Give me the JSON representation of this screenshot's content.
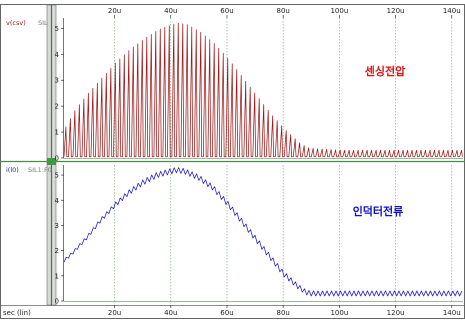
{
  "chart_data": {
    "type": "line",
    "x_ticks": [
      20,
      40,
      60,
      80,
      100,
      120,
      140
    ],
    "x_tick_labels": [
      "20u",
      "40u",
      "60u",
      "80u",
      "100u",
      "120u",
      "140u"
    ],
    "xlim": [
      2,
      144
    ],
    "xlabel": "sec (lin)",
    "panels": [
      {
        "ylabel": "v(csv)",
        "ylabel_extra": "SIL",
        "ylim": [
          0,
          5.4
        ],
        "y_ticks": [
          0,
          1,
          2,
          3,
          4,
          5
        ],
        "annotation": "센싱전압",
        "color": "#a01a1a",
        "series": [
          {
            "style": "pulse",
            "period": 1.6,
            "x": [
              2,
              5,
              10,
              15,
              20,
              25,
              30,
              35,
              40,
              42,
              45,
              50,
              55,
              60,
              65,
              70,
              75,
              80,
              85,
              88,
              92,
              100,
              120,
              144
            ],
            "values": [
              1.2,
              1.8,
              2.5,
              3.1,
              3.7,
              4.2,
              4.6,
              4.95,
              5.15,
              5.2,
              5.15,
              4.85,
              4.4,
              3.8,
              3.1,
              2.4,
              1.7,
              1.1,
              0.6,
              0.4,
              0.35,
              0.3,
              0.3,
              0.3
            ],
            "baseline": 0.05
          }
        ]
      },
      {
        "ylabel": "i(l0)",
        "ylabel_extra": "SIL1:F0",
        "ylim": [
          0,
          5.4
        ],
        "y_ticks": [
          0,
          1,
          2,
          3,
          4,
          5
        ],
        "annotation": "인덕터전류",
        "color": "#1a1acc",
        "series": [
          {
            "style": "ripple",
            "period": 1.6,
            "x": [
              2,
              5,
              10,
              15,
              20,
              25,
              30,
              35,
              40,
              42,
              45,
              50,
              55,
              60,
              65,
              70,
              75,
              80,
              85,
              88,
              90,
              92,
              100,
              120,
              144
            ],
            "values": [
              1.6,
              1.9,
              2.5,
              3.2,
              3.8,
              4.3,
              4.7,
              5.0,
              5.15,
              5.2,
              5.15,
              4.9,
              4.5,
              3.9,
              3.2,
              2.5,
              1.8,
              1.1,
              0.6,
              0.35,
              0.3,
              0.3,
              0.3,
              0.3,
              0.3
            ],
            "ripple": [
              0.12,
              0.12,
              0.14,
              0.16,
              0.18,
              0.2,
              0.22,
              0.22,
              0.22,
              0.22,
              0.22,
              0.22,
              0.22,
              0.22,
              0.22,
              0.22,
              0.22,
              0.22,
              0.2,
              0.2,
              0.2,
              0.2,
              0.2,
              0.2,
              0.2
            ]
          }
        ]
      }
    ]
  }
}
